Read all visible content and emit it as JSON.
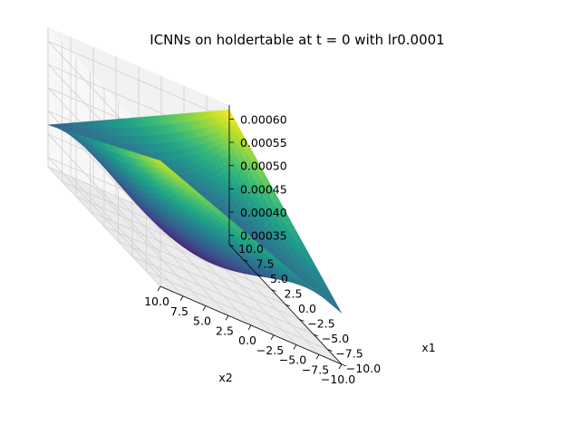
{
  "chart_data": {
    "type": "surface3d",
    "title": "ICNNs on holdertable at t = 0 with lr0.0001",
    "xlabel": "x1",
    "ylabel": "x2",
    "zlabel": "",
    "x_ticks": [
      "−10.0",
      "−7.5",
      "−5.0",
      "−2.5",
      "0.0",
      "2.5",
      "5.0",
      "7.5",
      "10.0"
    ],
    "y_ticks": [
      "10.0",
      "7.5",
      "5.0",
      "2.5",
      "0.0",
      "−2.5",
      "−5.0",
      "−7.5",
      "−10.0"
    ],
    "z_ticks": [
      "0.00035",
      "0.00040",
      "0.00045",
      "0.00050",
      "0.00055",
      "0.00060"
    ],
    "xlim": [
      -10,
      10
    ],
    "ylim": [
      -10,
      10
    ],
    "zlim": [
      0.00033,
      0.00063
    ],
    "colormap": "viridis",
    "grid": true,
    "surface_corners": {
      "x1_min_x2_max": 0.00042,
      "x1_max_x2_max": 0.00062,
      "x1_min_x2_min": 0.0006,
      "x1_max_x2_min": 0.00044,
      "minimum": 0.00034
    }
  }
}
